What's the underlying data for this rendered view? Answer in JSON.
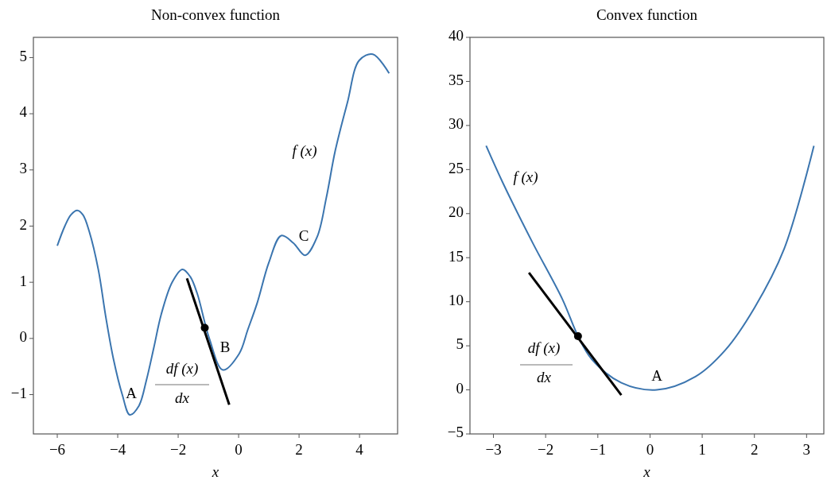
{
  "chart_data": [
    {
      "type": "line",
      "title": "Non-convex function",
      "xlabel": "x",
      "xlim": [
        -6.79,
        5.26
      ],
      "ylim": [
        -1.7,
        5.36
      ],
      "xticks": [
        -6,
        -4,
        -2,
        0,
        2,
        4
      ],
      "yticks": [
        -1,
        0,
        1,
        2,
        3,
        4,
        5
      ],
      "series": [
        {
          "color": "#3b75af",
          "x": [
            -6,
            -5.75,
            -5.55,
            -5.34,
            -5.15,
            -4.94,
            -4.64,
            -4.4,
            -4.14,
            -3.85,
            -3.6,
            -3.3,
            -3.05,
            -2.8,
            -2.56,
            -2.2,
            -1.86,
            -1.6,
            -1.37,
            -0.97,
            -0.52,
            0.02,
            0.3,
            0.62,
            1.0,
            1.41,
            1.81,
            2.2,
            2.6,
            2.9,
            3.2,
            3.6,
            3.99,
            4.44,
            4.98
          ],
          "values": [
            1.65,
            2.0,
            2.2,
            2.28,
            2.2,
            1.9,
            1.22,
            0.4,
            -0.37,
            -1.0,
            -1.36,
            -1.2,
            -0.74,
            -0.15,
            0.43,
            1.0,
            1.23,
            1.1,
            0.8,
            0,
            -0.56,
            -0.27,
            0.15,
            0.64,
            1.35,
            1.83,
            1.7,
            1.48,
            1.81,
            2.5,
            3.35,
            4.2,
            4.95,
            5.06,
            4.72
          ]
        },
        {
          "color": "#000000",
          "x": [
            -1.71,
            -0.31
          ],
          "values": [
            1.07,
            -1.18
          ]
        },
        {
          "type": "scatter",
          "marker": "circle",
          "color": "#000000",
          "x": [
            -1.12
          ],
          "values": [
            0.19
          ]
        }
      ],
      "annotations": [
        "A",
        "B",
        "C",
        "f (x)",
        "df (x)",
        "dx"
      ]
    },
    {
      "type": "line",
      "title": "Convex function",
      "xlabel": "x",
      "xlim": [
        -3.45,
        3.33
      ],
      "ylim": [
        -5,
        40
      ],
      "xticks": [
        -3,
        -2,
        -1,
        0,
        1,
        2,
        3
      ],
      "yticks": [
        -5,
        0,
        5,
        10,
        15,
        20,
        25,
        30,
        35,
        40
      ],
      "series": [
        {
          "color": "#3b75af",
          "x": [
            -3.14,
            -2.82,
            -2.25,
            -1.68,
            -1.38,
            -1.12,
            -0.55,
            0.13,
            0.87,
            1.44,
            2.0,
            2.57,
            3.14
          ],
          "values": [
            27.7,
            23.5,
            16.7,
            10.3,
            6.1,
            3.5,
            0.8,
            0,
            1.5,
            4.5,
            9.3,
            16.0,
            27.7
          ]
        },
        {
          "color": "#000000",
          "x": [
            -2.32,
            -0.55
          ],
          "values": [
            13.3,
            -0.6
          ]
        },
        {
          "type": "scatter",
          "marker": "circle",
          "color": "#000000",
          "x": [
            -1.38
          ],
          "values": [
            6.1
          ]
        }
      ],
      "annotations": [
        "f (x)",
        "df (x)",
        "dx",
        "A"
      ]
    }
  ]
}
